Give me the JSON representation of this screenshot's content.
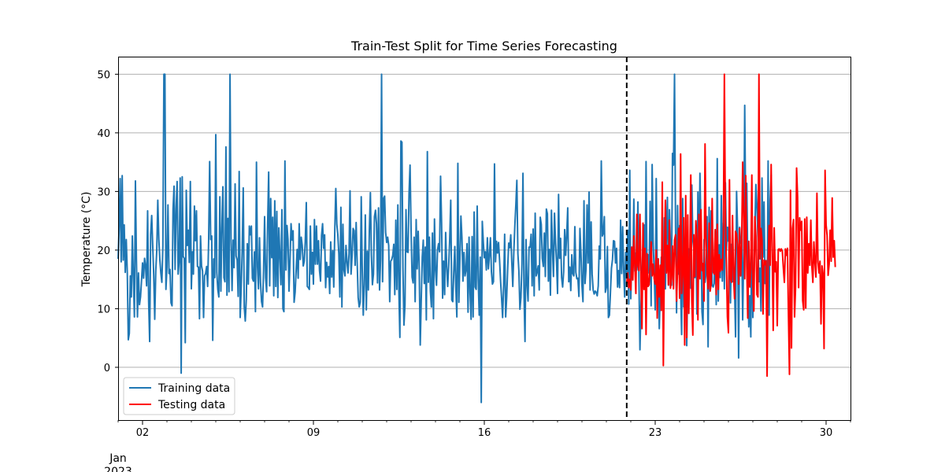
{
  "chart_data": {
    "type": "line",
    "title": "Train-Test Split for Time Series Forecasting",
    "xlabel": "",
    "ylabel": "Temperature (°C)",
    "x_range": [
      "2023-01-01",
      "2023-01-31"
    ],
    "ylim": [
      -9,
      53
    ],
    "yticks": [
      0,
      10,
      20,
      30,
      40,
      50
    ],
    "xticks": [
      {
        "date": "2023-01-02",
        "label": "02"
      },
      {
        "date": "2023-01-09",
        "label": "09"
      },
      {
        "date": "2023-01-16",
        "label": "16"
      },
      {
        "date": "2023-01-23",
        "label": "23"
      },
      {
        "date": "2023-01-30",
        "label": "30"
      }
    ],
    "x_sublabel_line1": "Jan",
    "x_sublabel_line2": "2023",
    "split_date": "2023-01-21T20:00",
    "grid": "horizontal",
    "legend": "lower-left",
    "series": [
      {
        "name": "Training data",
        "color": "#1f77b4",
        "start": "2023-01-01T00:00",
        "step_hours": 1,
        "values": [
          18.5,
          24.0,
          32.2,
          18.0,
          32.7,
          18.3,
          24.3,
          16.2,
          21.8,
          16.2,
          4.7,
          5.8,
          15.6,
          12.0,
          22.4,
          15.4,
          8.6,
          31.8,
          18.2,
          8.6,
          16.1,
          10.7,
          12.0,
          14.8,
          17.8,
          15.2,
          18.6,
          17.2,
          13.9,
          26.7,
          11.3,
          4.4,
          22.7,
          25.9,
          20.8,
          15.7,
          8.2,
          16.4,
          20.0,
          28.5,
          21.9,
          18.4,
          16.1,
          14.5,
          20.7,
          50.0,
          50.0,
          13.3,
          17.1,
          27.7,
          16.0,
          16.7,
          11.0,
          10.5,
          27.0,
          30.9,
          16.7,
          27.1,
          31.7,
          15.9,
          18.2,
          32.3,
          -1.0,
          32.5,
          18.9,
          18.6,
          4.2,
          30.2,
          20.8,
          23.4,
          17.9,
          31.7,
          13.4,
          19.7,
          15.9,
          27.5,
          21.6,
          26.7,
          17.2,
          17.1,
          8.3,
          22.4,
          17.3,
          16.4,
          8.5,
          15.6,
          16.0,
          17.2,
          13.8,
          21.7,
          35.1,
          21.8,
          22.4,
          4.6,
          18.5,
          15.3,
          39.7,
          16.2,
          13.3,
          12.0,
          29.1,
          13.0,
          23.7,
          30.8,
          15.3,
          14.6,
          37.6,
          12.3,
          25.4,
          12.9,
          50.0,
          21.8,
          13.1,
          21.7,
          17.0,
          31.3,
          19.0,
          18.3,
          12.1,
          33.4,
          8.5,
          13.6,
          20.0,
          30.6,
          10.3,
          7.9,
          11.6,
          21.1,
          14.2,
          24.1,
          22.6,
          24.1,
          15.2,
          14.7,
          19.7,
          9.5,
          35.0,
          17.2,
          13.4,
          22.1,
          14.5,
          11.2,
          10.3,
          16.5,
          25.7,
          15.3,
          12.9,
          24.6,
          33.3,
          13.9,
          28.8,
          18.7,
          25.6,
          12.2,
          28.4,
          13.8,
          26.6,
          11.9,
          23.8,
          19.2,
          14.1,
          26.9,
          10.0,
          9.5,
          35.2,
          16.6,
          24.2,
          21.8,
          13.0,
          18.3,
          24.5,
          21.7,
          23.3,
          11.1,
          12.8,
          16.5,
          20.1,
          15.2,
          24.5,
          18.4,
          22.2,
          20.8,
          17.3,
          18.1,
          21.6,
          28.1,
          13.8,
          13.6,
          13.3,
          24.1,
          15.9,
          19.6,
          14.2,
          25.2,
          17.6,
          24.1,
          17.6,
          21.6,
          16.5,
          14.7,
          22.5,
          24.5,
          20.3,
          22.6,
          13.6,
          17.9,
          15.4,
          17.2,
          12.6,
          21.4,
          15.4,
          19.9,
          13.7,
          23.4,
          30.5,
          24.4,
          22.6,
          19.3,
          12.0,
          27.3,
          10.3,
          24.4,
          16.6,
          15.6,
          20.8,
          18.0,
          16.1,
          19.4,
          30.1,
          15.9,
          19.0,
          23.7,
          23.3,
          17.4,
          24.7,
          18.0,
          11.9,
          10.3,
          11.1,
          29.1,
          16.6,
          8.9,
          14.1,
          26.0,
          9.8,
          19.8,
          13.2,
          23.5,
          29.8,
          19.2,
          14.1,
          15.9,
          25.7,
          26.8,
          24.5,
          14.4,
          27.2,
          13.2,
          18.4,
          50.0,
          14.6,
          28.8,
          29.2,
          23.0,
          21.3,
          22.2,
          20.8,
          11.2,
          18.1,
          18.4,
          19.1,
          21.0,
          12.4,
          25.1,
          13.3,
          27.7,
          13.1,
          5.1,
          38.6,
          38.4,
          16.9,
          7.2,
          10.6,
          26.9,
          19.7,
          19.6,
          29.6,
          34.5,
          23.5,
          15.4,
          14.4,
          22.2,
          11.2,
          25.2,
          16.8,
          23.2,
          17.1,
          3.8,
          11.6,
          18.8,
          21.7,
          14.3,
          20.5,
          8.1,
          36.8,
          14.5,
          22.2,
          13.0,
          10.3,
          22.9,
          8.3,
          25.3,
          16.7,
          14.0,
          20.0,
          21.1,
          19.7,
          32.6,
          24.7,
          11.8,
          18.1,
          12.4,
          23.0,
          17.2,
          13.8,
          17.4,
          21.9,
          28.5,
          11.5,
          11.2,
          16.4,
          20.6,
          13.7,
          8.6,
          34.8,
          11.1,
          18.6,
          25.8,
          22.1,
          14.7,
          19.6,
          15.6,
          16.6,
          21.1,
          9.4,
          22.2,
          12.7,
          8.2,
          22.3,
          8.6,
          26.5,
          13.7,
          13.3,
          27.5,
          15.1,
          8.9,
          18.8,
          -6.0,
          24.9,
          21.4,
          18.7,
          19.7,
          16.6,
          22.1,
          16.8,
          19.1,
          22.1,
          16.3,
          14.2,
          14.6,
          34.7,
          18.0,
          21.5,
          19.5,
          21.3,
          18.3,
          14.7,
          11.8,
          8.5,
          13.9,
          22.7,
          8.6,
          12.0,
          17.0,
          21.2,
          20.4,
          22.6,
          18.1,
          13.8,
          19.6,
          24.1,
          27.7,
          31.9,
          19.4,
          16.4,
          9.9,
          11.9,
          17.7,
          33.1,
          12.8,
          4.4,
          21.8,
          14.3,
          11.3,
          20.5,
          20.5,
          22.7,
          13.9,
          23.6,
          12.2,
          26.3,
          15.6,
          16.3,
          17.3,
          13.2,
          25.6,
          24.4,
          18.6,
          17.2,
          22.9,
          15.5,
          27.0,
          26.2,
          14.7,
          20.1,
          12.3,
          26.8,
          20.3,
          15.5,
          26.3,
          21.4,
          17.9,
          12.6,
          29.5,
          18.6,
          22.0,
          15.3,
          13.7,
          16.3,
          23.5,
          19.1,
          22.6,
          27.2,
          14.6,
          17.1,
          13.1,
          19.2,
          16.0,
          15.6,
          24.0,
          16.2,
          15.1,
          15.2,
          12.1,
          23.7,
          19.6,
          13.9,
          11.2,
          28.4,
          14.3,
          16.8,
          27.7,
          17.8,
          29.9,
          13.2,
          24.8,
          15.9,
          13.2,
          12.5,
          13.0,
          12.8,
          12.2,
          13.9,
          20.7,
          18.5,
          35.2,
          22.4,
          22.9,
          25.7,
          12.8,
          13.6,
          20.6,
          8.5,
          8.9,
          12.8,
          16.9,
          18.4,
          21.6,
          21.5,
          17.8,
          20.3,
          13.7,
          16.5,
          13.6,
          25.1,
          16.0,
          24.0,
          16.6,
          12.0,
          19.6,
          16.1,
          23.4,
          10.8,
          33.6,
          11.7,
          19.8,
          16.9,
          28.7,
          16.4,
          19.5,
          16.6,
          28.2,
          15.1,
          3.0,
          10.4,
          15.8,
          21.0,
          24.3,
          13.4,
          35.1,
          15.2,
          19.2,
          16.1,
          28.3,
          10.5,
          34.6,
          21.1,
          16.3,
          9.8,
          32.2,
          16.2,
          18.5,
          6.6,
          13.3,
          18.8,
          13.2,
          9.2,
          25.5,
          13.4,
          22.8,
          29.0,
          14.0,
          26.9,
          20.6,
          14.0,
          36.5,
          34.5,
          50.0,
          24.1,
          9.3,
          27.6,
          15.9,
          24.2,
          13.3,
          5.6,
          28.8,
          10.3,
          10.4,
          24.6,
          3.7,
          15.7,
          20.2,
          18.0,
          13.5,
          31.1,
          21.7,
          20.2,
          15.3,
          24.0,
          9.1,
          29.9,
          16.3,
          33.1,
          23.0,
          9.5,
          7.3,
          21.8,
          14.5,
          16.2,
          25.7,
          3.5,
          27.3,
          17.4,
          26.7,
          14.0,
          13.7,
          14.3,
          23.2,
          10.7,
          35.6,
          11.3,
          20.9,
          15.3,
          29.3,
          14.7,
          24.6,
          13.4,
          31.5,
          20.0,
          23.9,
          21.5,
          25.3,
          11.0,
          21.0,
          14.6,
          15.5,
          13.7,
          5.2,
          30.0,
          23.5,
          1.6,
          23.9,
          21.2,
          21.9,
          8.1,
          19.8,
          44.7,
          25.3,
          31.4,
          17.9,
          6.9,
          12.2,
          5.2,
          24.6,
          8.5,
          14.6,
          23.6,
          31.2,
          27.4,
          22.2,
          14.6,
          16.9,
          9.6,
          32.3,
          18.8,
          28.2,
          14.3,
          14.5,
          9.0,
          35.2,
          8.9,
          28.5,
          32.9
        ]
      },
      {
        "name": "Testing data",
        "color": "#ff0000",
        "start": "2023-01-21T20:00",
        "step_hours": 1,
        "values": [
          14.3,
          16.1,
          13.6,
          15.0,
          13.2,
          20.5,
          14.9,
          22.4,
          17.4,
          12.6,
          26.1,
          17.4,
          16.5,
          26.1,
          15.3,
          6.6,
          24.6,
          13.3,
          20.3,
          5.6,
          19.4,
          13.8,
          14.1,
          17.3,
          21.4,
          15.6,
          17.6,
          15.1,
          14.2,
          20.0,
          8.4,
          18.5,
          12.0,
          17.4,
          9.7,
          31.6,
          0.3,
          17.8,
          28.5,
          16.1,
          20.8,
          14.1,
          25.1,
          13.5,
          15.1,
          20.7,
          13.4,
          21.7,
          22.6,
          11.3,
          16.9,
          23.7,
          11.8,
          36.4,
          12.6,
          16.1,
          25.5,
          3.8,
          29.3,
          5.1,
          26.0,
          9.2,
          18.1,
          32.8,
          11.3,
          5.5,
          22.6,
          15.5,
          25.0,
          22.0,
          8.1,
          26.1,
          15.1,
          26.9,
          16.5,
          17.7,
          11.3,
          38.1,
          22.1,
          16.1,
          13.4,
          24.6,
          13.0,
          14.2,
          28.8,
          16.3,
          15.9,
          23.5,
          12.4,
          24.4,
          13.3,
          19.2,
          16.4,
          18.4,
          16.6,
          22.6,
          50.0,
          25.1,
          17.7,
          8.6,
          5.9,
          32.0,
          15.1,
          14.5,
          25.9,
          15.8,
          11.7,
          23.2,
          22.7,
          21.0,
          14.2,
          23.7,
          15.6,
          20.7,
          35.0,
          26.2,
          15.1,
          32.7,
          17.3,
          8.4,
          21.5,
          13.7,
          16.8,
          32.8,
          14.1,
          9.6,
          25.7,
          22.4,
          12.4,
          12.0,
          50.0,
          18.5,
          23.7,
          21.8,
          9.1,
          18.3,
          17.5,
          18.2,
          -1.5,
          18.1,
          24.2,
          17.4,
          34.6,
          20.5,
          6.3,
          23.8,
          16.3,
          18.0,
          7.1,
          20.1,
          20.2,
          19.8,
          20.2,
          19.8,
          16.9,
          14.5,
          20.2,
          19.1,
          20.3,
          9.0,
          -1.2,
          30.2,
          3.3,
          23.7,
          25.2,
          8.6,
          13.7,
          34.0,
          29.0,
          13.6,
          25.5,
          23.4,
          24.9,
          11.4,
          9.8,
          25.3,
          10.1,
          25.6,
          16.1,
          21.1,
          17.4,
          25.1,
          17.3,
          14.5,
          21.4,
          17.9,
          15.4,
          29.7,
          18.0,
          16.1,
          18.1,
          7.4,
          17.3,
          15.9,
          3.2,
          33.6,
          24.3,
          22.5,
          15.7,
          17.6,
          23.4,
          18.1,
          28.9,
          18.8,
          21.6,
          17.1
        ]
      }
    ]
  }
}
